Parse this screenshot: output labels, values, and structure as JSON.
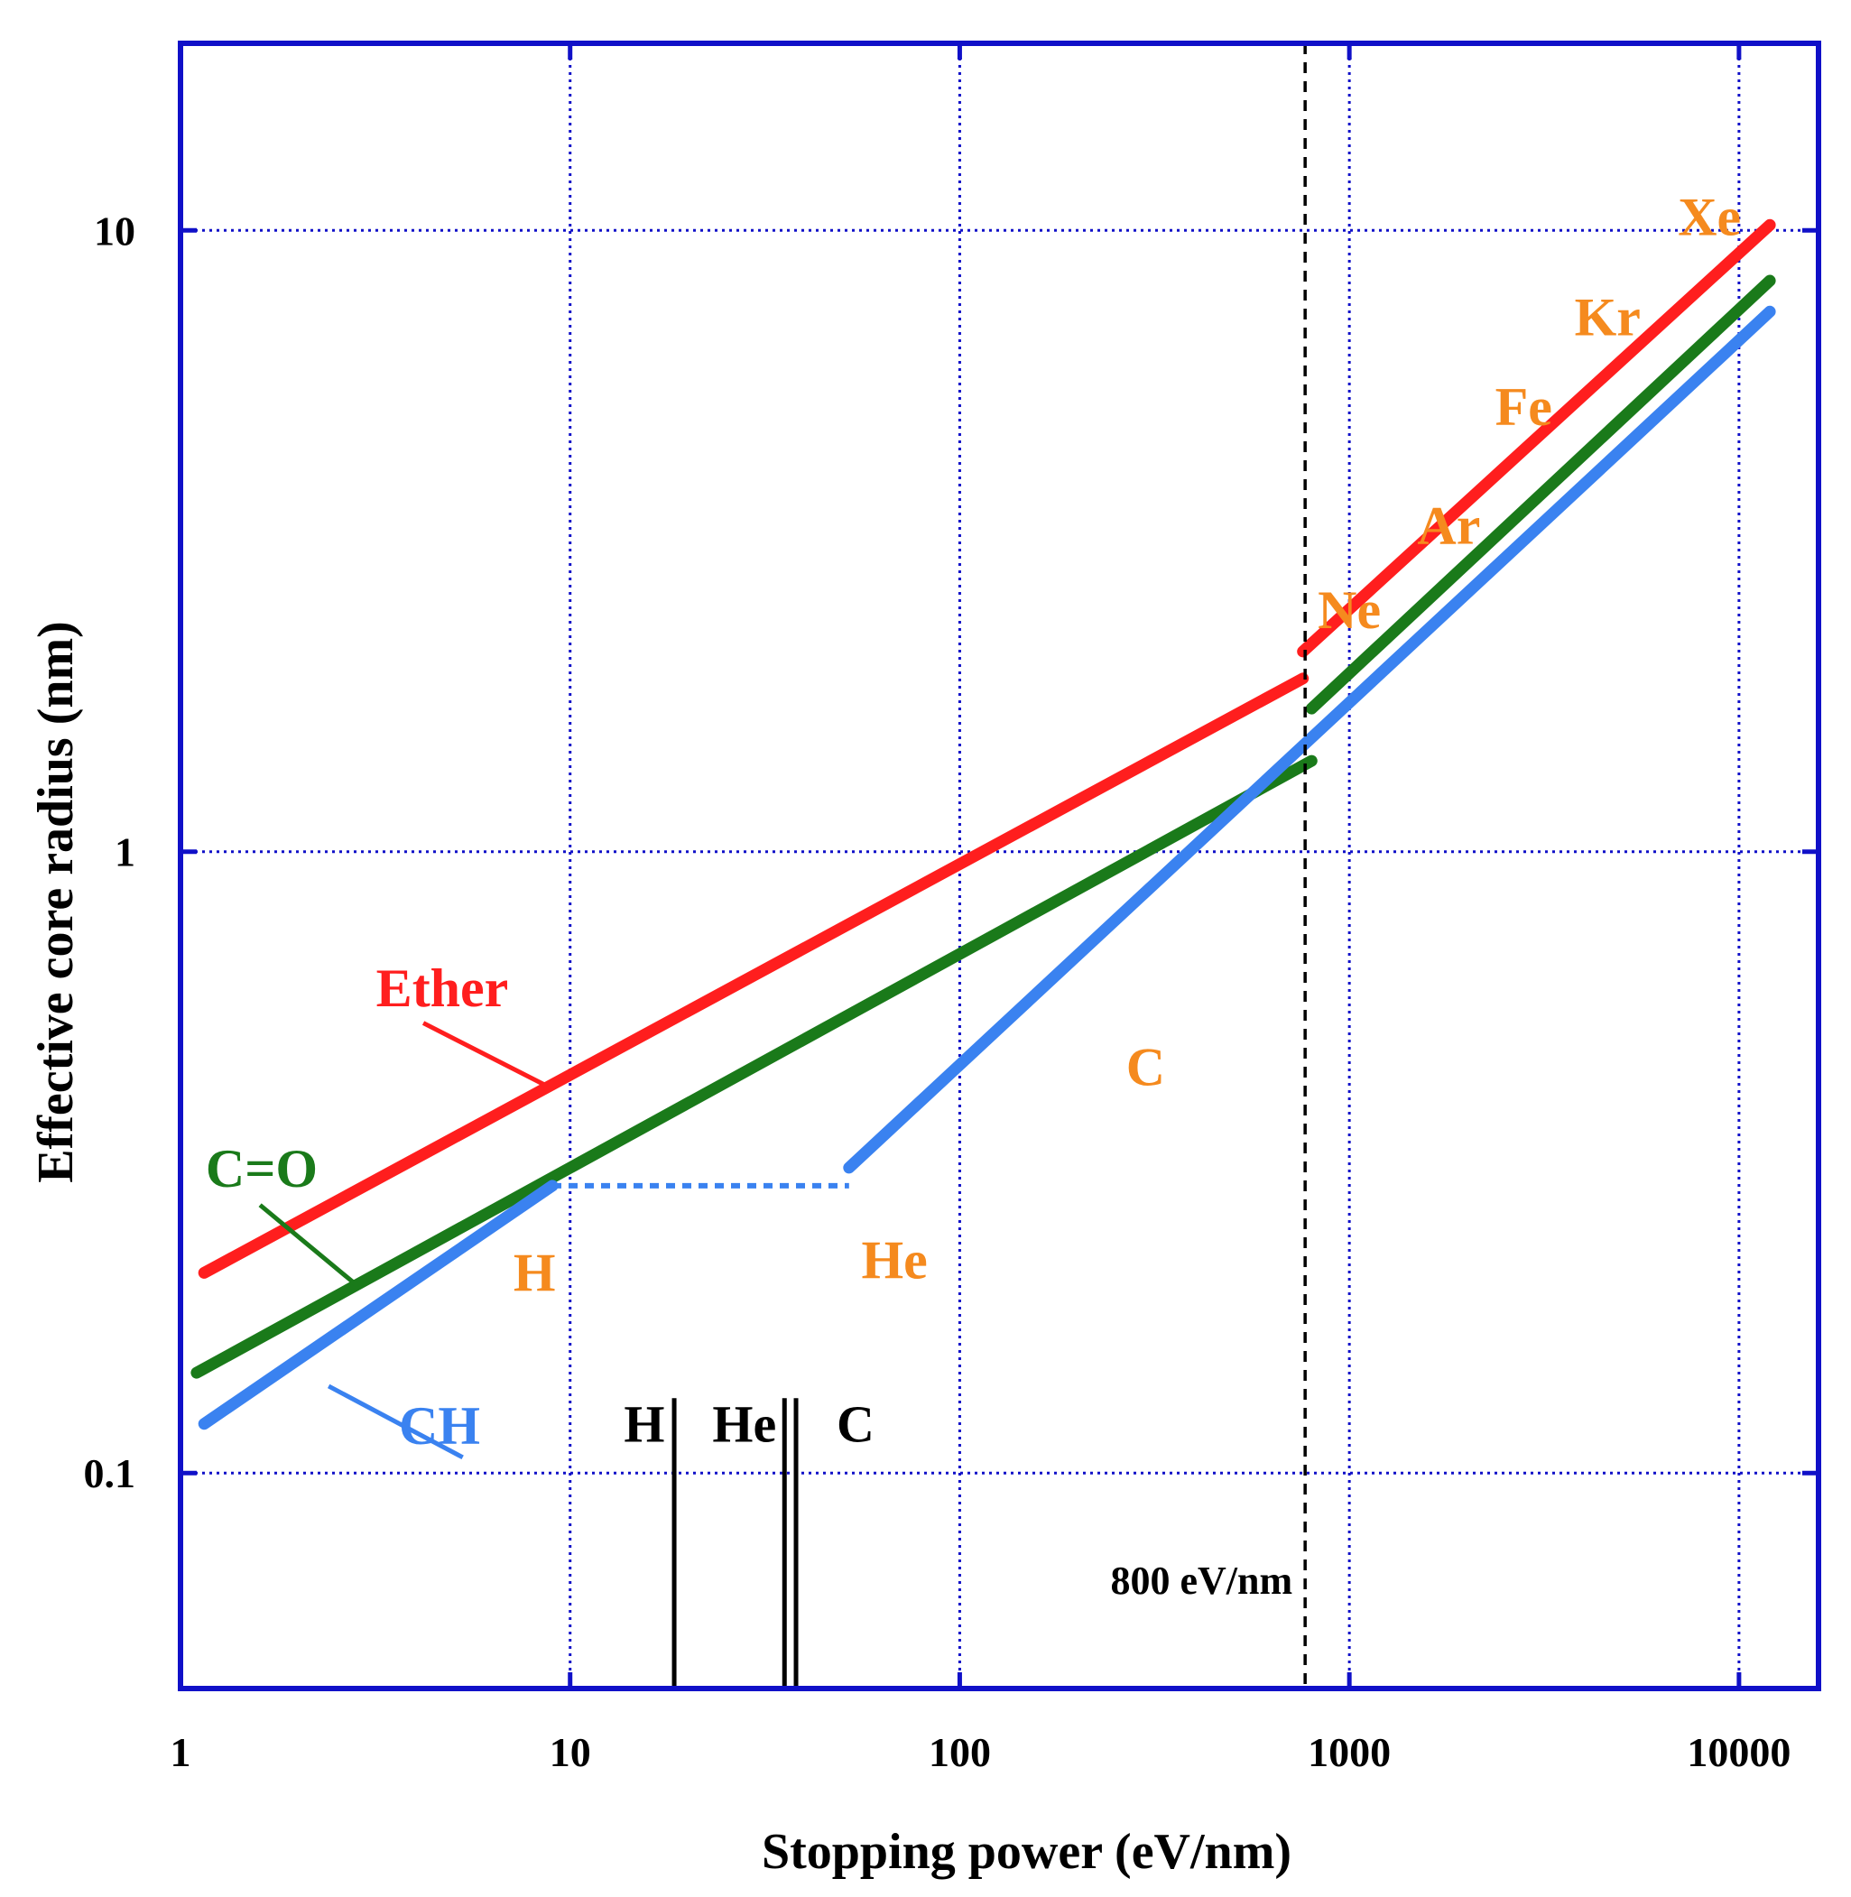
{
  "chart_data": {
    "type": "line",
    "title": "",
    "xlabel": "Stopping power (eV/nm)",
    "ylabel": "Effective core radius (nm)",
    "xscale": "log",
    "yscale": "log",
    "xlim": [
      1,
      16000
    ],
    "ylim": [
      0.045,
      20
    ],
    "grid": true,
    "x_ticks": [
      {
        "value": 1,
        "label": "1"
      },
      {
        "value": 10,
        "label": "10"
      },
      {
        "value": 100,
        "label": "100"
      },
      {
        "value": 1000,
        "label": "1000"
      },
      {
        "value": 10000,
        "label": "10000"
      }
    ],
    "y_ticks": [
      {
        "value": 0.1,
        "label": "0.1"
      },
      {
        "value": 1,
        "label": "1"
      },
      {
        "value": 10,
        "label": "10"
      }
    ],
    "colors": {
      "frame": "#1010c8",
      "grid": "#1010c8",
      "ether": "#ff1e1e",
      "co": "#1a7a1a",
      "ch": "#3a82f0",
      "ion": "#f58a1e",
      "text": "#000000"
    },
    "series": [
      {
        "name": "Ether",
        "color": "#ff1e1e",
        "segments": [
          {
            "x": [
              1.15,
              760
            ],
            "y": [
              0.21,
              1.9
            ]
          },
          {
            "x": [
              760,
              12000
            ],
            "y": [
              2.1,
              10.2
            ]
          }
        ]
      },
      {
        "name": "C=O",
        "color": "#1a7a1a",
        "segments": [
          {
            "x": [
              1.1,
              800
            ],
            "y": [
              0.145,
              1.4
            ]
          },
          {
            "x": [
              800,
              12000
            ],
            "y": [
              1.7,
              8.3
            ]
          }
        ]
      },
      {
        "name": "CH",
        "color": "#3a82f0",
        "segments": [
          {
            "x": [
              1.15,
              9
            ],
            "y": [
              0.12,
              0.29
            ]
          },
          {
            "x": [
              9,
              52
            ],
            "y": [
              0.29,
              0.29
            ],
            "style": "dotted"
          },
          {
            "x": [
              52,
              12000
            ],
            "y": [
              0.31,
              7.4
            ]
          }
        ]
      }
    ],
    "series_labels": [
      {
        "series": "Ether",
        "text": "Ether",
        "color": "#ff1e1e",
        "leader_x": [
          4.2,
          8.7
        ],
        "leader_y": [
          0.53,
          0.42
        ]
      },
      {
        "series": "C=O",
        "text": "C=O",
        "color": "#1a7a1a",
        "leader_x": [
          1.6,
          2.85
        ],
        "leader_y": [
          0.27,
          0.2
        ]
      },
      {
        "series": "CH",
        "text": "CH",
        "color": "#3a82f0",
        "leader_x": [
          2.4,
          5.3
        ],
        "leader_y": [
          0.138,
          0.106
        ]
      }
    ],
    "ion_annotations": [
      {
        "text": "H",
        "color": "#f58a1e",
        "x": 8.1,
        "y": 0.21
      },
      {
        "text": "He",
        "color": "#f58a1e",
        "x": 68,
        "y": 0.22
      },
      {
        "text": "C",
        "color": "#f58a1e",
        "x": 300,
        "y": 0.45
      },
      {
        "text": "Ne",
        "color": "#f58a1e",
        "x": 1000,
        "y": 2.45
      },
      {
        "text": "Ar",
        "color": "#f58a1e",
        "x": 1800,
        "y": 3.35
      },
      {
        "text": "Fe",
        "color": "#f58a1e",
        "x": 2800,
        "y": 5.2
      },
      {
        "text": "Kr",
        "color": "#f58a1e",
        "x": 4600,
        "y": 7.25
      },
      {
        "text": "Xe",
        "color": "#f58a1e",
        "x": 8400,
        "y": 10.5
      }
    ],
    "ion_markers": [
      {
        "text": "H",
        "x": 18.5,
        "label_x": 15.5
      },
      {
        "text": "He",
        "x": 35.5,
        "label_x": 28
      },
      {
        "text": "C",
        "x": 38,
        "label_x": 54
      }
    ],
    "ion_marker_label_y": 0.12,
    "ion_marker_top_y": 0.132,
    "threshold": {
      "x": 770,
      "label": "800 eV/nm",
      "label_y": 0.067
    }
  }
}
